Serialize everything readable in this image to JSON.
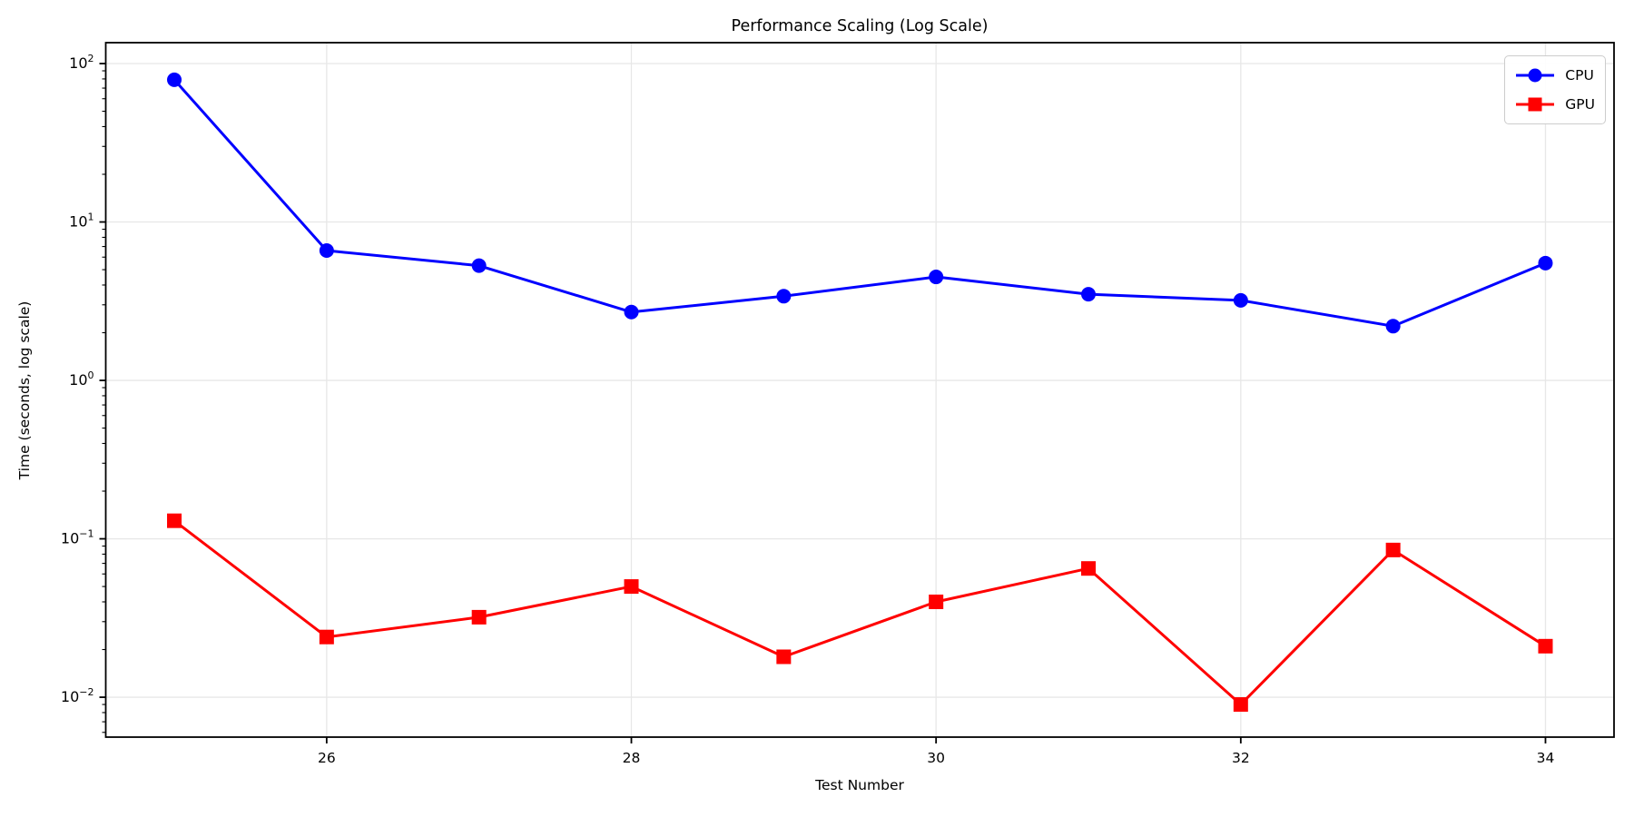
{
  "chart_data": {
    "type": "line",
    "title": "Performance Scaling (Log Scale)",
    "xlabel": "Test Number",
    "ylabel": "Time (seconds, log scale)",
    "x": [
      25,
      26,
      27,
      28,
      29,
      30,
      31,
      32,
      33,
      34
    ],
    "series": [
      {
        "name": "CPU",
        "color": "#0000ff",
        "marker": "circle",
        "values": [
          79,
          6.6,
          5.3,
          2.7,
          3.4,
          4.5,
          3.5,
          3.2,
          2.2,
          5.5
        ]
      },
      {
        "name": "GPU",
        "color": "#ff0000",
        "marker": "square",
        "values": [
          0.13,
          0.024,
          0.032,
          0.05,
          0.018,
          0.04,
          0.065,
          0.009,
          0.085,
          0.021
        ]
      }
    ],
    "x_ticks": [
      26,
      28,
      30,
      32,
      34
    ],
    "y_tick_exponents": [
      2,
      1,
      0,
      -1,
      -2
    ],
    "y_scale": "log",
    "xlim": [
      24.55,
      34.45
    ],
    "ylim": [
      0.0056,
      135.5
    ],
    "grid": true,
    "legend_position": "upper right",
    "grid_color": "#e7e7e7",
    "axis_color": "#000000"
  }
}
